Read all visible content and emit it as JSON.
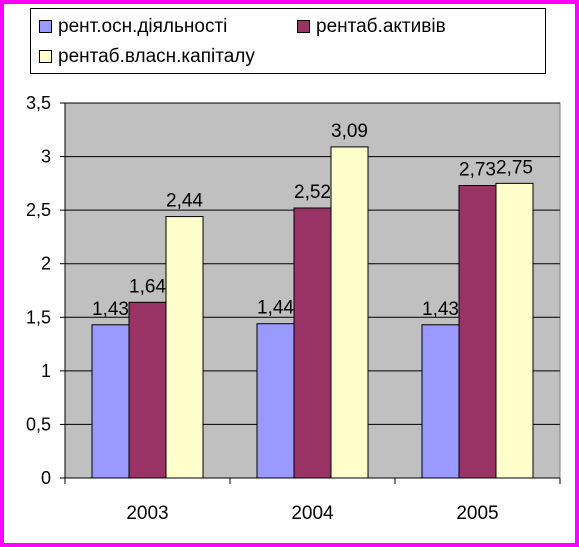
{
  "chart_data": {
    "type": "bar",
    "categories": [
      "2003",
      "2004",
      "2005"
    ],
    "series": [
      {
        "name": "рент.осн.діяльності",
        "values": [
          1.43,
          1.44,
          1.43
        ],
        "color": "#9999ff",
        "labels": [
          "1,43",
          "1,44",
          "1,43"
        ]
      },
      {
        "name": "рентаб.активів",
        "values": [
          1.64,
          2.52,
          2.73
        ],
        "color": "#993366",
        "labels": [
          "1,64",
          "2,52",
          "2,73"
        ]
      },
      {
        "name": "рентаб.власн.капіталу",
        "values": [
          2.44,
          3.09,
          2.75
        ],
        "color": "#ffffcc",
        "labels": [
          "2,44",
          "3,09",
          "2,75"
        ]
      }
    ],
    "ylim": [
      0,
      3.5
    ],
    "ytick_values": [
      0,
      0.5,
      1,
      1.5,
      2,
      2.5,
      3,
      3.5
    ],
    "ytick_labels": [
      "0",
      "0,5",
      "1",
      "1,5",
      "2",
      "2,5",
      "3",
      "3,5"
    ],
    "plot_background": "#c0c0c0",
    "border_color": "#ff00ff",
    "grid": true,
    "legend_position": "top"
  }
}
